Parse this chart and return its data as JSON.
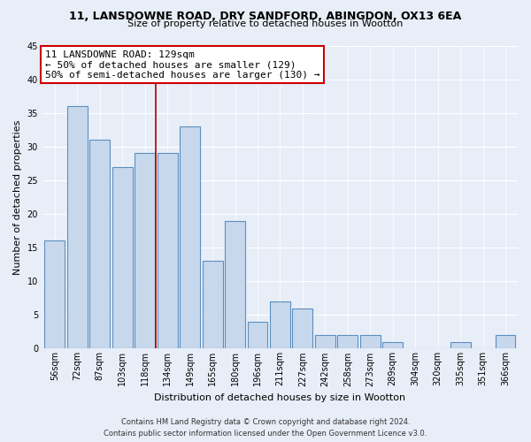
{
  "title1": "11, LANSDOWNE ROAD, DRY SANDFORD, ABINGDON, OX13 6EA",
  "title2": "Size of property relative to detached houses in Wootton",
  "xlabel": "Distribution of detached houses by size in Wootton",
  "ylabel": "Number of detached properties",
  "categories": [
    "56sqm",
    "72sqm",
    "87sqm",
    "103sqm",
    "118sqm",
    "134sqm",
    "149sqm",
    "165sqm",
    "180sqm",
    "196sqm",
    "211sqm",
    "227sqm",
    "242sqm",
    "258sqm",
    "273sqm",
    "289sqm",
    "304sqm",
    "320sqm",
    "335sqm",
    "351sqm",
    "366sqm"
  ],
  "values": [
    16,
    36,
    31,
    27,
    29,
    29,
    33,
    13,
    19,
    4,
    7,
    6,
    2,
    2,
    2,
    1,
    0,
    0,
    1,
    0,
    2
  ],
  "bar_color": "#c8d8ec",
  "bar_edge_color": "#5b8fc0",
  "vline_pos": 4.5,
  "annotation_title": "11 LANSDOWNE ROAD: 129sqm",
  "annotation_line1": "← 50% of detached houses are smaller (129)",
  "annotation_line2": "50% of semi-detached houses are larger (130) →",
  "annotation_box_color": "#ffffff",
  "annotation_box_edge": "#cc0000",
  "vline_color": "#aa0000",
  "ylim": [
    0,
    45
  ],
  "yticks": [
    0,
    5,
    10,
    15,
    20,
    25,
    30,
    35,
    40,
    45
  ],
  "footer1": "Contains HM Land Registry data © Crown copyright and database right 2024.",
  "footer2": "Contains public sector information licensed under the Open Government Licence v3.0.",
  "bg_color": "#e8eef8",
  "grid_color": "#ffffff",
  "title1_fontsize": 9,
  "title2_fontsize": 8,
  "ylabel_fontsize": 8,
  "xlabel_fontsize": 8,
  "tick_fontsize": 7,
  "annot_fontsize": 8,
  "footer_fontsize": 6
}
